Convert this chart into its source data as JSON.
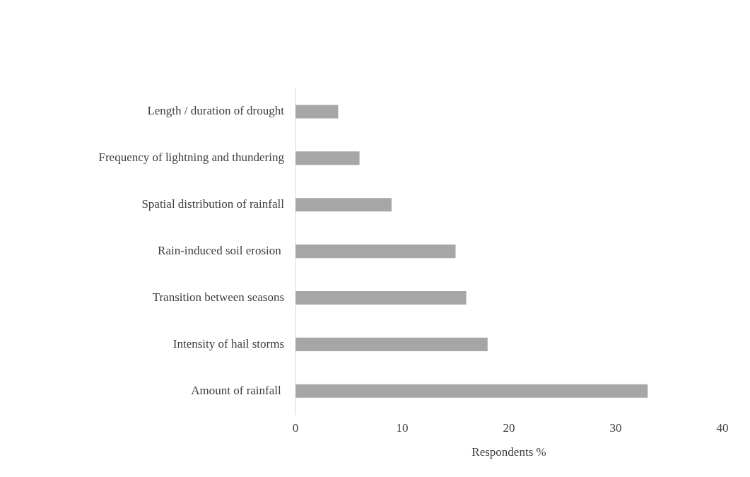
{
  "chart_data": {
    "type": "bar",
    "orientation": "horizontal",
    "xlabel": "Respondents %",
    "categories": [
      "Length / duration of drought",
      "Frequency of lightning and thundering",
      "Spatial distribution of rainfall",
      "Rain-induced soil erosion ",
      "Transition between seasons",
      "Intensity of hail storms",
      "Amount of rainfall "
    ],
    "values": [
      4,
      6,
      9,
      15,
      16,
      18,
      33
    ],
    "color": "#a6a6a6",
    "xlim": [
      0,
      40
    ],
    "xticks": [
      0,
      10,
      20,
      30,
      40
    ],
    "grid": false,
    "legend": false
  }
}
